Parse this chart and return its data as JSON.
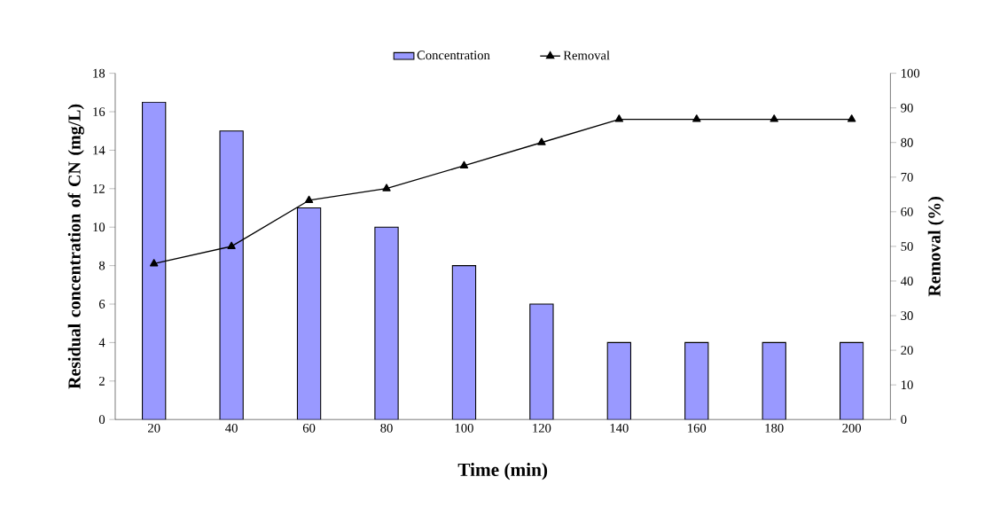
{
  "chart_data": {
    "type": "bar",
    "xlabel": "Time (min)",
    "ylabel": "Residual concentration of CN (mg/L)",
    "y2label": "Removal (%)",
    "categories": [
      "20",
      "40",
      "60",
      "80",
      "100",
      "120",
      "140",
      "160",
      "180",
      "200"
    ],
    "series": [
      {
        "name": "Concentration",
        "color": "#9999ff",
        "values": [
          16.5,
          15,
          11,
          10,
          8,
          6,
          4,
          4,
          4,
          4
        ]
      },
      {
        "name": "Removal",
        "type": "line",
        "axis": "y2",
        "color": "#000000",
        "marker": "triangle",
        "values": [
          45,
          50,
          63.3,
          66.7,
          73.3,
          80,
          86.7,
          86.7,
          86.7,
          86.7
        ]
      }
    ],
    "ylim": [
      0,
      18
    ],
    "yticks": [
      0,
      2,
      4,
      6,
      8,
      10,
      12,
      14,
      16,
      18
    ],
    "y2lim": [
      0,
      100
    ],
    "y2ticks": [
      0,
      10,
      20,
      30,
      40,
      50,
      60,
      70,
      80,
      90,
      100
    ],
    "legend": "top",
    "grid": false
  }
}
